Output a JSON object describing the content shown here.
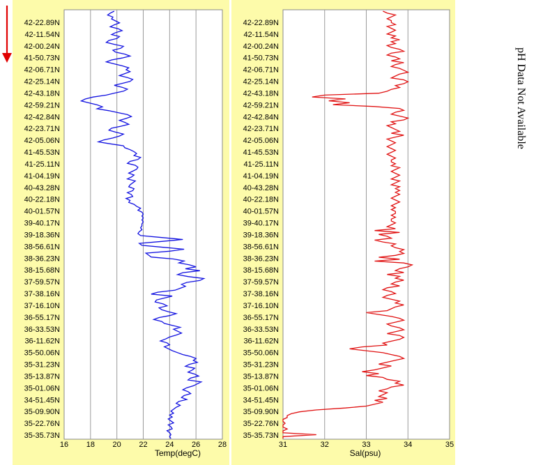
{
  "side_note": "pH Data Not Available",
  "arrow_color": "#e00000",
  "latitudes": [
    "42-22.89N",
    "42-11.54N",
    "42-00.24N",
    "41-50.73N",
    "42-06.71N",
    "42-25.14N",
    "42-43.18N",
    "42-59.21N",
    "42-42.84N",
    "42-23.71N",
    "42-05.06N",
    "41-45.53N",
    "41-25.11N",
    "41-04.19N",
    "40-43.28N",
    "40-22.18N",
    "40-01.57N",
    "39-40.17N",
    "39-18.36N",
    "38-56.61N",
    "38-36.23N",
    "38-15.68N",
    "37-59.57N",
    "37-38.16N",
    "37-16.10N",
    "36-55.17N",
    "36-33.53N",
    "36-11.62N",
    "35-50.06N",
    "35-31.23N",
    "35-13.87N",
    "35-01.06N",
    "34-51.45N",
    "35-09.90N",
    "35-22.76N",
    "35-35.73N"
  ],
  "chart_data": [
    {
      "type": "line",
      "orientation": "vertical-profile",
      "xlabel": "Temp(degC)",
      "xlim": [
        16,
        28
      ],
      "xticks": [
        "16",
        "18",
        "20",
        "22",
        "24",
        "26",
        "28"
      ],
      "grid": "vertical",
      "series": [
        {
          "color": "#1010e0",
          "values": [
            19.8,
            19.5,
            19.3,
            19.7,
            19.6,
            19.9,
            20.2,
            19.8,
            19.5,
            20.1,
            20.4,
            19.9,
            19.6,
            20.2,
            20.0,
            19.4,
            19.2,
            19.8,
            20.5,
            20.3,
            19.7,
            19.9,
            20.6,
            21.0,
            20.4,
            19.6,
            19.2,
            19.8,
            20.4,
            20.9,
            20.7,
            21.0,
            20.6,
            20.2,
            20.8,
            21.2,
            21.0,
            20.4,
            19.8,
            20.4,
            20.8,
            20.5,
            19.8,
            19.2,
            18.2,
            17.6,
            17.3,
            17.9,
            18.5,
            18.9,
            18.5,
            19.4,
            20.1,
            20.8,
            21.1,
            20.7,
            20.2,
            20.6,
            20.9,
            20.3,
            19.6,
            19.4,
            19.9,
            20.5,
            20.2,
            19.7,
            19.0,
            18.6,
            19.5,
            20.5,
            20.6,
            21.0,
            21.3,
            21.5,
            21.3,
            21.8,
            21.6,
            21.0,
            20.8,
            21.4,
            21.6,
            21.5,
            21.2,
            20.9,
            21.3,
            21.1,
            20.8,
            21.4,
            21.2,
            21.0,
            20.9,
            21.3,
            21.2,
            20.8,
            21.1,
            21.2,
            20.7,
            21.0,
            20.9,
            21.3,
            21.5,
            21.8,
            21.6,
            21.9,
            22.0,
            21.9,
            22.0,
            21.9,
            22.0,
            21.9,
            21.9,
            21.8,
            21.9,
            21.7,
            21.6,
            21.8,
            23.4,
            25.0,
            23.4,
            21.7,
            21.9,
            23.5,
            25.1,
            24.0,
            22.2,
            22.4,
            22.6,
            24.3,
            25.1,
            24.7,
            25.5,
            26.0,
            25.2,
            26.3,
            25.0,
            24.6,
            25.4,
            26.6,
            26.3,
            25.3,
            24.9,
            25.2,
            24.8,
            24.4,
            23.1,
            22.6,
            24.2,
            23.6,
            23.0,
            22.9,
            23.5,
            23.8,
            23.2,
            23.4,
            23.9,
            24.5,
            24.0,
            23.2,
            22.8,
            23.4,
            23.6,
            24.2,
            24.8,
            24.3,
            24.6,
            24.9,
            24.5,
            24.0,
            23.7,
            23.3,
            23.8,
            24.0,
            23.6,
            23.9,
            24.2,
            24.6,
            25.0,
            25.6,
            26.0,
            25.8,
            26.1,
            25.5,
            25.2,
            25.9,
            25.7,
            25.4,
            25.9,
            26.2,
            25.6,
            25.4,
            26.4,
            26.1,
            25.8,
            25.3,
            25.0,
            25.4,
            25.6,
            25.1,
            24.9,
            25.3,
            24.7,
            24.5,
            24.8,
            24.5,
            24.3,
            24.1,
            24.3,
            24.0,
            24.2,
            23.9,
            24.1,
            24.3,
            23.9,
            24.1,
            24.2,
            23.8,
            24.0,
            24.1,
            24.0,
            24.1
          ]
        }
      ]
    },
    {
      "type": "line",
      "orientation": "vertical-profile",
      "xlabel": "Sal(psu)",
      "xlim": [
        31,
        35
      ],
      "xticks": [
        "31",
        "32",
        "33",
        "34",
        "35"
      ],
      "grid": "vertical",
      "series": [
        {
          "color": "#e01010",
          "values": [
            33.4,
            33.5,
            33.7,
            33.6,
            33.5,
            33.6,
            33.6,
            33.7,
            33.5,
            33.6,
            33.7,
            33.6,
            33.5,
            33.7,
            33.6,
            33.8,
            33.6,
            33.7,
            33.5,
            33.6,
            33.8,
            33.9,
            33.6,
            33.5,
            33.7,
            33.8,
            33.6,
            33.9,
            33.7,
            33.6,
            33.8,
            33.9,
            34.0,
            33.8,
            33.7,
            33.6,
            33.9,
            34.0,
            33.9,
            33.7,
            33.8,
            33.6,
            33.5,
            33.3,
            32.0,
            31.7,
            32.5,
            32.1,
            32.6,
            32.2,
            33.2,
            33.8,
            33.9,
            33.7,
            33.6,
            33.8,
            34.0,
            33.9,
            33.6,
            33.7,
            33.5,
            33.6,
            33.7,
            33.8,
            33.6,
            33.9,
            33.7,
            33.5,
            33.6,
            33.7,
            33.6,
            33.5,
            33.6,
            33.7,
            33.6,
            33.5,
            33.6,
            33.7,
            33.6,
            33.6,
            33.7,
            33.6,
            33.8,
            33.7,
            33.6,
            33.7,
            33.8,
            33.7,
            33.6,
            33.8,
            33.7,
            33.6,
            33.8,
            33.7,
            33.8,
            33.7,
            33.8,
            33.7,
            33.6,
            33.7,
            33.8,
            33.7,
            33.6,
            33.7,
            33.6,
            33.7,
            33.7,
            33.6,
            33.7,
            33.6,
            33.6,
            33.7,
            33.6,
            33.5,
            33.7,
            33.2,
            33.8,
            33.3,
            33.5,
            33.6,
            33.2,
            33.4,
            33.7,
            33.6,
            33.7,
            33.9,
            33.8,
            33.9,
            33.7,
            33.3,
            33.8,
            33.2,
            33.9,
            34.1,
            34.0,
            33.8,
            33.7,
            33.9,
            33.5,
            33.8,
            33.7,
            33.9,
            33.7,
            33.6,
            33.8,
            33.5,
            33.4,
            33.6,
            33.7,
            33.5,
            33.4,
            33.6,
            33.8,
            33.7,
            33.9,
            33.7,
            33.6,
            33.5,
            33.0,
            33.3,
            33.6,
            33.8,
            33.9,
            33.7,
            33.5,
            33.6,
            33.8,
            33.9,
            33.7,
            33.5,
            33.8,
            33.9,
            33.8,
            33.6,
            33.4,
            33.5,
            32.9,
            32.6,
            33.0,
            33.4,
            33.6,
            33.8,
            33.9,
            33.7,
            33.5,
            33.3,
            33.6,
            33.4,
            33.2,
            32.9,
            33.3,
            33.0,
            33.4,
            33.5,
            33.8,
            33.7,
            33.9,
            33.6,
            33.5,
            33.3,
            33.5,
            33.4,
            33.3,
            33.5,
            33.2,
            33.4,
            33.2,
            33.0,
            32.5,
            31.8,
            31.4,
            31.2,
            31.1,
            31.1,
            31.0,
            31.0,
            31.05,
            31.0,
            31.0,
            31.1,
            31.0,
            31.0,
            31.8,
            31.0,
            31.0
          ]
        }
      ]
    }
  ]
}
